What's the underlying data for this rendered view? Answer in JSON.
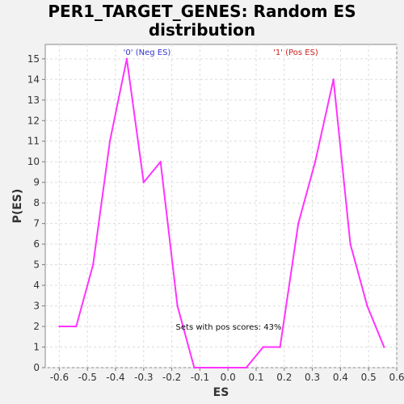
{
  "chart_data": {
    "type": "line",
    "title_lines": [
      "PER1_TARGET_GENES: Random ES",
      "distribution"
    ],
    "xlabel": "ES",
    "ylabel": "P(ES)",
    "xlim": [
      -0.65,
      0.6
    ],
    "ylim": [
      0,
      15.7
    ],
    "x_ticks": [
      -0.6,
      -0.5,
      -0.4,
      -0.3,
      -0.2,
      -0.1,
      0.0,
      0.1,
      0.2,
      0.3,
      0.4,
      0.5,
      0.6
    ],
    "x_tick_labels": [
      "-0.6",
      "-0.5",
      "-0.4",
      "-0.3",
      "-0.2",
      "-0.1",
      "0.0",
      "0.1",
      "0.2",
      "0.3",
      "0.4",
      "0.5",
      "0.6"
    ],
    "y_ticks": [
      0,
      1,
      2,
      3,
      4,
      5,
      6,
      7,
      8,
      9,
      10,
      11,
      12,
      13,
      14,
      15
    ],
    "y_tick_labels": [
      "0",
      "1",
      "2",
      "3",
      "4",
      "5",
      "6",
      "7",
      "8",
      "9",
      "10",
      "11",
      "12",
      "13",
      "14",
      "15"
    ],
    "grid": true,
    "series": [
      {
        "color": "#ff33ff",
        "x": [
          -0.6,
          -0.54,
          -0.48,
          -0.42,
          -0.36,
          -0.3,
          -0.24,
          -0.18,
          -0.12,
          -0.06,
          0.0,
          0.065,
          0.125,
          0.185,
          0.25,
          0.31,
          0.375,
          0.435,
          0.495,
          0.555
        ],
        "y": [
          2,
          2,
          5,
          11,
          15,
          9,
          10,
          3,
          0,
          0,
          0,
          0,
          1,
          1,
          7,
          10,
          14,
          6,
          3,
          1
        ]
      }
    ],
    "annotations": {
      "neg_label": "'0' (Neg ES)",
      "neg_color": "#3333cc",
      "pos_label": "'1' (Pos ES)",
      "pos_color": "#cc2222",
      "pos_note": "Sets with pos scores: 43%"
    }
  }
}
